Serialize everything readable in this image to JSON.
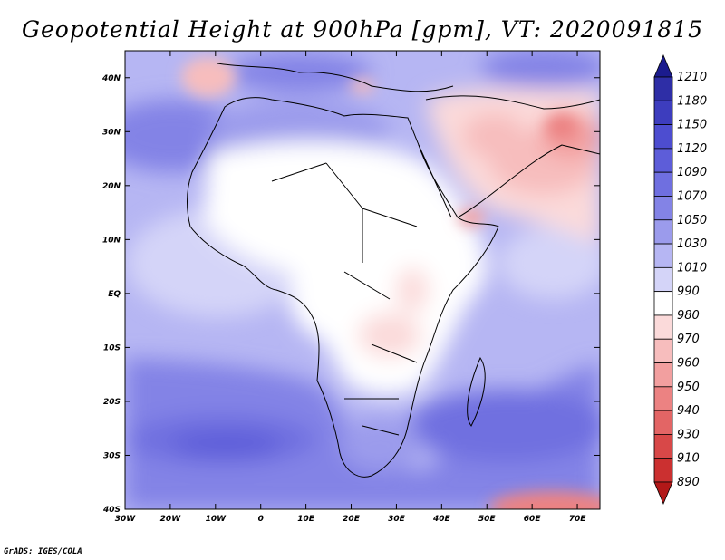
{
  "title": "Geopotential Height at 900hPa [gpm], VT: 2020091815",
  "credit": "GrADS: IGES/COLA",
  "map": {
    "lon_range": [
      -30,
      75
    ],
    "lat_range": [
      -40,
      45
    ],
    "lon_ticks": [
      {
        "value": -30,
        "label": "30W"
      },
      {
        "value": -20,
        "label": "20W"
      },
      {
        "value": -10,
        "label": "10W"
      },
      {
        "value": 0,
        "label": "0"
      },
      {
        "value": 10,
        "label": "10E"
      },
      {
        "value": 20,
        "label": "20E"
      },
      {
        "value": 30,
        "label": "30E"
      },
      {
        "value": 40,
        "label": "40E"
      },
      {
        "value": 50,
        "label": "50E"
      },
      {
        "value": 60,
        "label": "60E"
      },
      {
        "value": 70,
        "label": "70E"
      }
    ],
    "lat_ticks": [
      {
        "value": 40,
        "label": "40N"
      },
      {
        "value": 30,
        "label": "30N"
      },
      {
        "value": 20,
        "label": "20N"
      },
      {
        "value": 10,
        "label": "10N"
      },
      {
        "value": 0,
        "label": "EQ"
      },
      {
        "value": -10,
        "label": "10S"
      },
      {
        "value": -20,
        "label": "20S"
      },
      {
        "value": -30,
        "label": "30S"
      },
      {
        "value": -40,
        "label": "40S"
      }
    ]
  },
  "colorbar": {
    "labels": [
      "1210",
      "1180",
      "1150",
      "1120",
      "1090",
      "1070",
      "1050",
      "1030",
      "1010",
      "990",
      "980",
      "970",
      "960",
      "950",
      "940",
      "930",
      "910",
      "890"
    ],
    "colors": [
      "#1b1b8e",
      "#2e2ea6",
      "#3d3dbe",
      "#4d4dd0",
      "#5d5dd9",
      "#6f6fe0",
      "#8383e6",
      "#9b9bec",
      "#b6b6f3",
      "#d4d4f8",
      "#ffffff",
      "#fbdada",
      "#f7bdbd",
      "#f29f9f",
      "#ec8282",
      "#e36565",
      "#d84848",
      "#cb3030",
      "#b21818"
    ]
  }
}
